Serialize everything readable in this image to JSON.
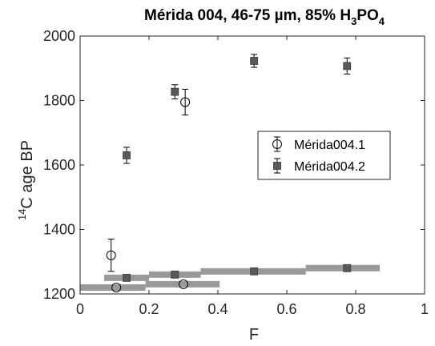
{
  "chart_data": {
    "type": "scatter",
    "title": {
      "main": "Mérida 004, 46-75 µm, 85% H",
      "sub1": "3",
      "mid": "PO",
      "sub2": "4"
    },
    "xlabel": "F",
    "ylabel": {
      "sup": "14",
      "text": "C age BP"
    },
    "xlim": [
      0,
      1
    ],
    "ylim": [
      1200,
      2000
    ],
    "xticks": [
      {
        "value": 0,
        "label": "0"
      },
      {
        "value": 0.2,
        "label": "0.2"
      },
      {
        "value": 0.4,
        "label": "0.4"
      },
      {
        "value": 0.6,
        "label": "0.6"
      },
      {
        "value": 0.8,
        "label": "0.8"
      },
      {
        "value": 1,
        "label": "1"
      }
    ],
    "yticks": [
      {
        "value": 1200,
        "label": "1200"
      },
      {
        "value": 1400,
        "label": "1400"
      },
      {
        "value": 1600,
        "label": "1600"
      },
      {
        "value": 1800,
        "label": "1800"
      },
      {
        "value": 2000,
        "label": "2000"
      }
    ],
    "legend": {
      "placement": "center-right",
      "entries": [
        {
          "label": "Mérida004.1",
          "marker": "open-circle"
        },
        {
          "label": "Mérida004.2",
          "marker": "filled-square"
        }
      ]
    },
    "series": [
      {
        "name": "Mérida004.1",
        "marker": "open-circle",
        "color": "#000000",
        "points": [
          {
            "x": 0.09,
            "y": 1320,
            "err": 50
          },
          {
            "x": 0.305,
            "y": 1795,
            "err": 40
          }
        ],
        "interval_points": [
          {
            "x": 0.105,
            "y": 1220,
            "x_start": 0.0,
            "x_end": 0.19
          },
          {
            "x": 0.3,
            "y": 1230,
            "x_start": 0.19,
            "x_end": 0.405
          }
        ]
      },
      {
        "name": "Mérida004.2",
        "marker": "filled-square",
        "color": "#595959",
        "points": [
          {
            "x": 0.135,
            "y": 1630,
            "err": 25
          },
          {
            "x": 0.275,
            "y": 1827,
            "err": 22
          },
          {
            "x": 0.505,
            "y": 1923,
            "err": 20
          },
          {
            "x": 0.775,
            "y": 1907,
            "err": 25
          }
        ],
        "interval_points": [
          {
            "x": 0.135,
            "y": 1250,
            "x_start": 0.07,
            "x_end": 0.2
          },
          {
            "x": 0.275,
            "y": 1260,
            "x_start": 0.2,
            "x_end": 0.35
          },
          {
            "x": 0.505,
            "y": 1270,
            "x_start": 0.35,
            "x_end": 0.655
          },
          {
            "x": 0.775,
            "y": 1280,
            "x_start": 0.655,
            "x_end": 0.87
          }
        ]
      }
    ],
    "bar_color": "#999999",
    "grid": false
  }
}
